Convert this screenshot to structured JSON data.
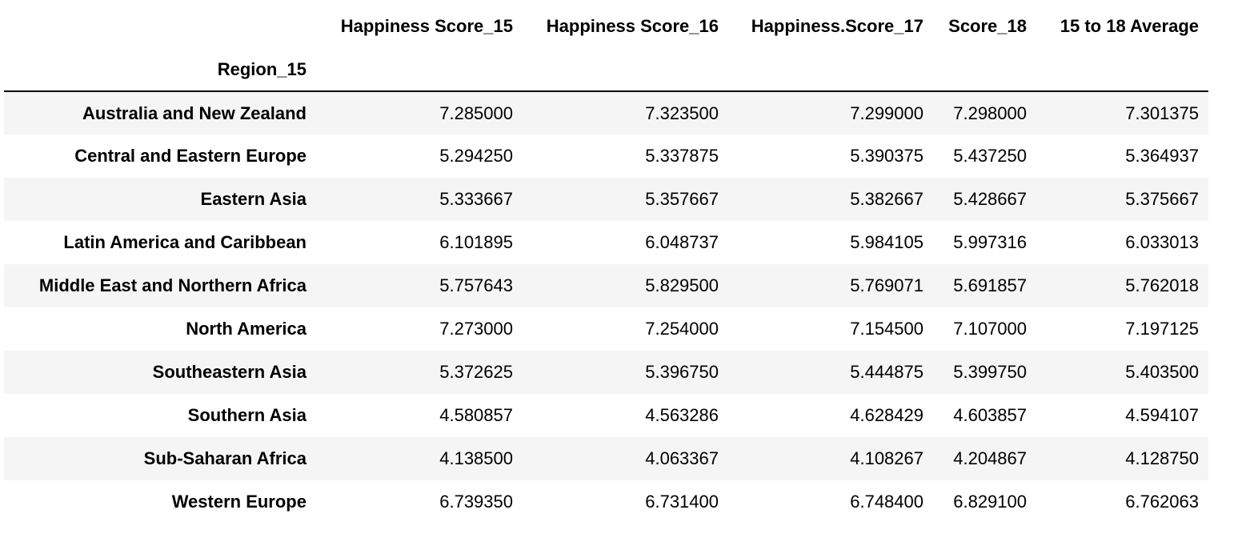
{
  "table": {
    "columns": [
      "Happiness Score_15",
      "Happiness Score_16",
      "Happiness.Score_17",
      "Score_18",
      "15 to 18 Average"
    ],
    "index_name": "Region_15",
    "rows": [
      {
        "region": "Australia and New Zealand",
        "values": [
          "7.285000",
          "7.323500",
          "7.299000",
          "7.298000",
          "7.301375"
        ]
      },
      {
        "region": "Central and Eastern Europe",
        "values": [
          "5.294250",
          "5.337875",
          "5.390375",
          "5.437250",
          "5.364937"
        ]
      },
      {
        "region": "Eastern Asia",
        "values": [
          "5.333667",
          "5.357667",
          "5.382667",
          "5.428667",
          "5.375667"
        ]
      },
      {
        "region": "Latin America and Caribbean",
        "values": [
          "6.101895",
          "6.048737",
          "5.984105",
          "5.997316",
          "6.033013"
        ]
      },
      {
        "region": "Middle East and Northern Africa",
        "values": [
          "5.757643",
          "5.829500",
          "5.769071",
          "5.691857",
          "5.762018"
        ]
      },
      {
        "region": "North America",
        "values": [
          "7.273000",
          "7.254000",
          "7.154500",
          "7.107000",
          "7.197125"
        ]
      },
      {
        "region": "Southeastern Asia",
        "values": [
          "5.372625",
          "5.396750",
          "5.444875",
          "5.399750",
          "5.403500"
        ]
      },
      {
        "region": "Southern Asia",
        "values": [
          "4.580857",
          "4.563286",
          "4.628429",
          "4.603857",
          "4.594107"
        ]
      },
      {
        "region": "Sub-Saharan Africa",
        "values": [
          "4.138500",
          "4.063367",
          "4.108267",
          "4.204867",
          "4.128750"
        ]
      },
      {
        "region": "Western Europe",
        "values": [
          "6.739350",
          "6.731400",
          "6.748400",
          "6.829100",
          "6.762063"
        ]
      }
    ]
  },
  "colors": {
    "striped_row_bg": "#f5f5f5",
    "header_rule": "#000000",
    "text": "#000000"
  }
}
